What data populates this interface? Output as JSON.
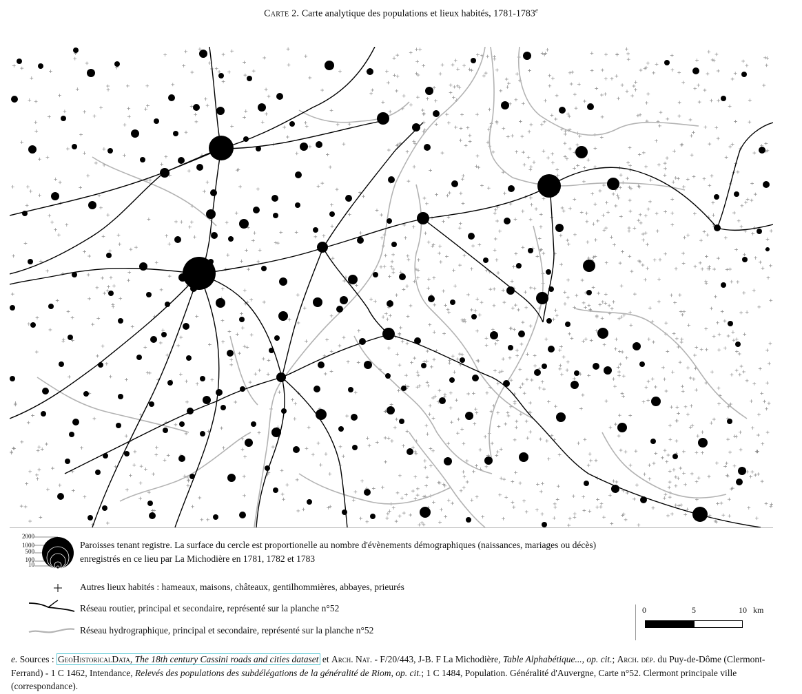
{
  "header": {
    "title_prefix": "Carte 2.",
    "title_text": "Carte analytique des populations et lieux habités, 1781-1783",
    "title_note_marker": "e"
  },
  "legend": {
    "proportional_values": [
      "2000",
      "1000",
      "500",
      "100",
      "10"
    ],
    "parishes_line1": "Paroisses tenant registre.  La surface du cercle est proportionelle au nombre d'évènements démographiques (naissances, mariages ou décès)",
    "parishes_line2": "enregistrés en ce lieu par La Michodière en 1781, 1782 et 1783",
    "other_places": "Autres lieux habités : hameaux, maisons, châteaux, gentilhommières, abbayes, prieurés",
    "roads": "Réseau routier, principal et secondaire, représenté sur la planche n°52",
    "hydro": "Réseau hydrographique, principal et secondaire, représenté sur la planche n°52"
  },
  "scale": {
    "label_0": "0",
    "label_5": "5",
    "label_10": "10",
    "unit": "km"
  },
  "note": {
    "marker": "e.",
    "sources_label": "Sources :",
    "link_org": "GeoHistoricalData",
    "link_title": "The 18th century Cassini roads and cities dataset",
    "after_link": " et ",
    "arch_nat": "Arch. Nat.",
    "ref1": " - F/20/443, J-B. F La Michodière, ",
    "table_title": "Table Alphabétique..., op. cit.",
    "sep1": "; ",
    "arch_dep": "Arch. dép.",
    "ref2": " du Puy-de-Dôme (Clermont-Ferrand) - 1 C 1462, Intendance, ",
    "releves_title": "Relevés des populations des subdélégations de la généralité de Riom, op. cit.",
    "ref3": "; 1 C 1484, Population. Généralité d'Auvergne, Carte n°52. Clermont principale ville (correspondance)."
  },
  "colors": {
    "parish": "#000000",
    "road": "#000000",
    "river": "#b3b3b3",
    "hamlet": "#8a8a8a"
  }
}
